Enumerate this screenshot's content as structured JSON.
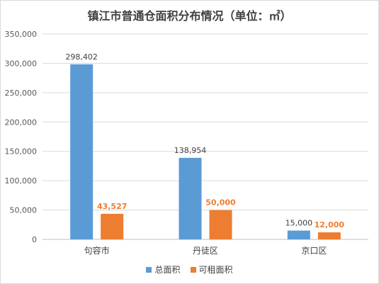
{
  "chart_data": {
    "type": "bar",
    "title": "镇江市普通仓面积分布情况（单位：㎡）",
    "categories": [
      "句容市",
      "丹徒区",
      "京口区"
    ],
    "series": [
      {
        "name": "总面积",
        "values": [
          298402,
          138954,
          15000
        ],
        "labels": [
          "298,402",
          "138,954",
          "15,000"
        ],
        "color": "#5b9bd5"
      },
      {
        "name": "可租面积",
        "values": [
          43527,
          50000,
          12000
        ],
        "labels": [
          "43,527",
          "50,000",
          "12,000"
        ],
        "color": "#ed7d31"
      }
    ],
    "ylim": [
      0,
      350000
    ],
    "yticks": [
      0,
      50000,
      100000,
      150000,
      200000,
      250000,
      300000,
      350000
    ],
    "ytick_labels": [
      "0",
      "50,000",
      "100,000",
      "150,000",
      "200,000",
      "250,000",
      "300,000",
      "350,000"
    ],
    "grid": true,
    "legend": "bottom"
  }
}
